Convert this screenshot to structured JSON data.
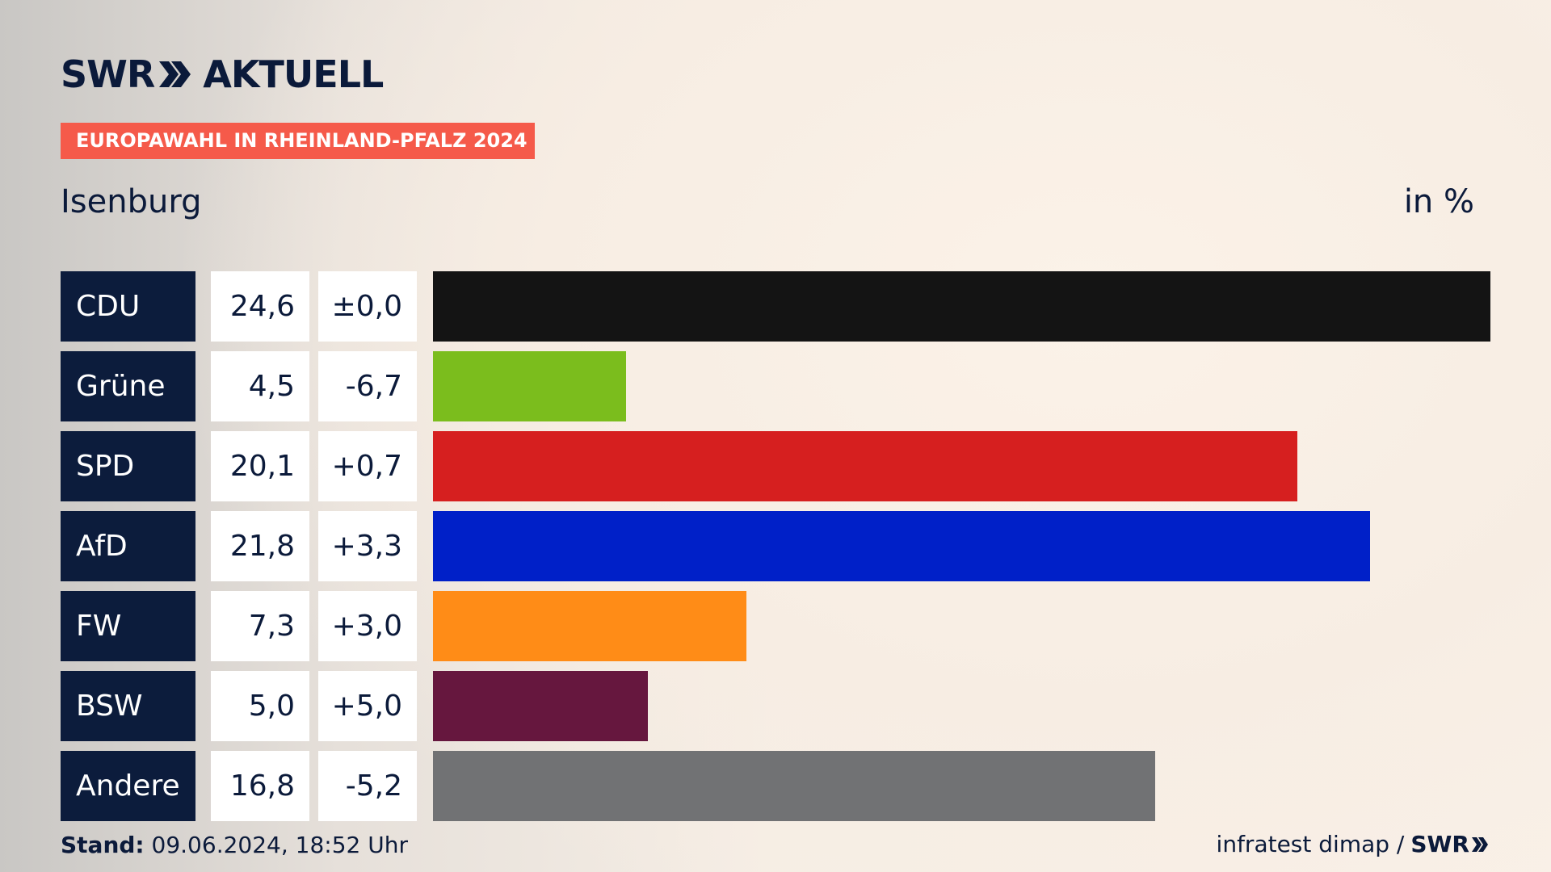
{
  "header": {
    "logo_text_left": "SWR",
    "logo_text_right": "AKTUELL",
    "banner": "EUROPAWAHL IN RHEINLAND-PFALZ 2024",
    "region": "Isenburg",
    "unit": "in %"
  },
  "footer": {
    "stand_label": "Stand:",
    "stand_value": "09.06.2024, 18:52 Uhr",
    "source": "infratest dimap /",
    "brand": "SWR"
  },
  "chart_data": {
    "type": "bar",
    "categories": [
      "CDU",
      "Grüne",
      "SPD",
      "AfD",
      "FW",
      "BSW",
      "Andere"
    ],
    "values": [
      24.6,
      4.5,
      20.1,
      21.8,
      7.3,
      5.0,
      16.8
    ],
    "value_labels": [
      "24,6",
      "4,5",
      "20,1",
      "21,8",
      "7,3",
      "5,0",
      "16,8"
    ],
    "diff_labels": [
      "±0,0",
      "-6,7",
      "+0,7",
      "+3,3",
      "+3,0",
      "+5,0",
      "-5,2"
    ],
    "colors": [
      "#141414",
      "#7bbd1d",
      "#d61f1f",
      "#0020c8",
      "#ff8c17",
      "#66173e",
      "#717274"
    ],
    "xlim": [
      0,
      24.6
    ],
    "title": "Isenburg",
    "unit": "in %"
  }
}
